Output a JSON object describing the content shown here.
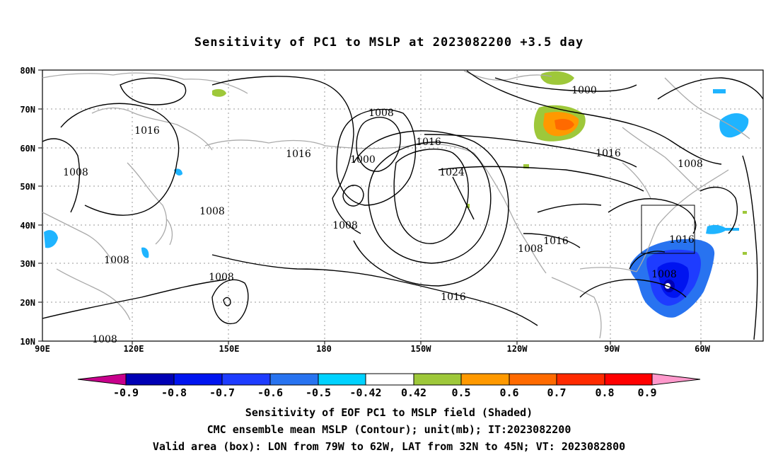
{
  "title": "Sensitivity of PC1 to MSLP at 2023082200 +3.5 day",
  "map": {
    "lat_labels": [
      "80N",
      "70N",
      "60N",
      "50N",
      "40N",
      "30N",
      "20N",
      "10N"
    ],
    "lon_labels": [
      "90E",
      "120E",
      "150E",
      "180",
      "150W",
      "120W",
      "90W",
      "60W"
    ],
    "contour_labels": [
      "1016",
      "1008",
      "1008",
      "1008",
      "1008",
      "1008",
      "1008",
      "1000",
      "1008",
      "1016",
      "1024",
      "1016",
      "1016",
      "1000",
      "1016",
      "1008",
      "1008",
      "1016",
      "1016",
      "1008"
    ],
    "colors": {
      "contour": "#000000",
      "coast": "#aaaaaa",
      "grid": "#999999"
    }
  },
  "colorbar": {
    "labels": [
      "-0.9",
      "-0.8",
      "-0.7",
      "-0.6",
      "-0.5",
      "-0.42",
      "0.42",
      "0.5",
      "0.6",
      "0.7",
      "0.8",
      "0.9"
    ],
    "colors": [
      "#c8008c",
      "#0000b4",
      "#0014f0",
      "#1e3cff",
      "#2873f0",
      "#1fb4ff",
      "#00d2ff",
      "#ffffff",
      "#9ec83a",
      "#ff9900",
      "#ff6a00",
      "#ff2a00",
      "#ff0000",
      "#ff99cc"
    ]
  },
  "footer": {
    "line1": "Sensitivity of EOF PC1 to MSLP field (Shaded)",
    "line2": "CMC ensemble mean MSLP (Contour); unit(mb); IT:2023082200",
    "line3": "Valid area (box): LON from 79W to 62W, LAT from 32N to 45N; VT: 2023082800"
  }
}
